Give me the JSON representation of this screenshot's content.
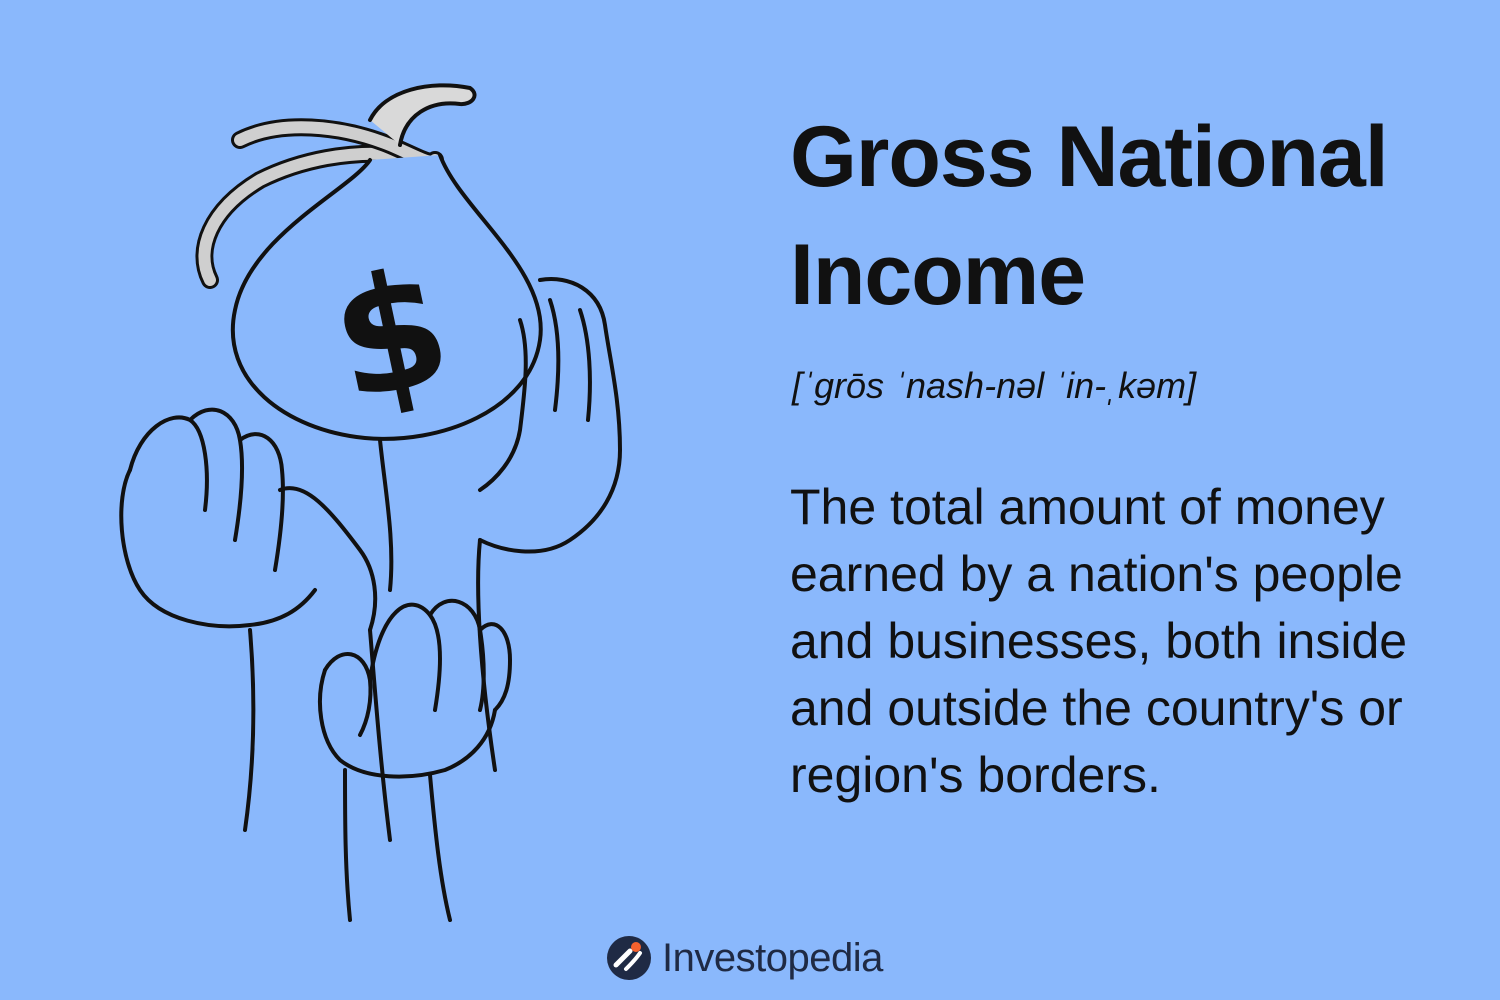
{
  "heading": {
    "title": "Gross National Income",
    "pronunciation": "[ˈgrōs ˈnash-nəl ˈin-ˌkəm]"
  },
  "definition": {
    "text": "The total amount of money earned by a nation's people and businesses, both inside and outside the country's or region's borders."
  },
  "illustration": {
    "symbol": "$",
    "description_icon": "money-bag-held-by-hands-icon"
  },
  "brand": {
    "name": "Investopedia",
    "icon": "investopedia-logo-icon"
  },
  "colors": {
    "background": "#8ab8fc",
    "text": "#111111",
    "line": "#111111",
    "brand_accent": "#f5612d",
    "brand_dark": "#1f2a44"
  }
}
